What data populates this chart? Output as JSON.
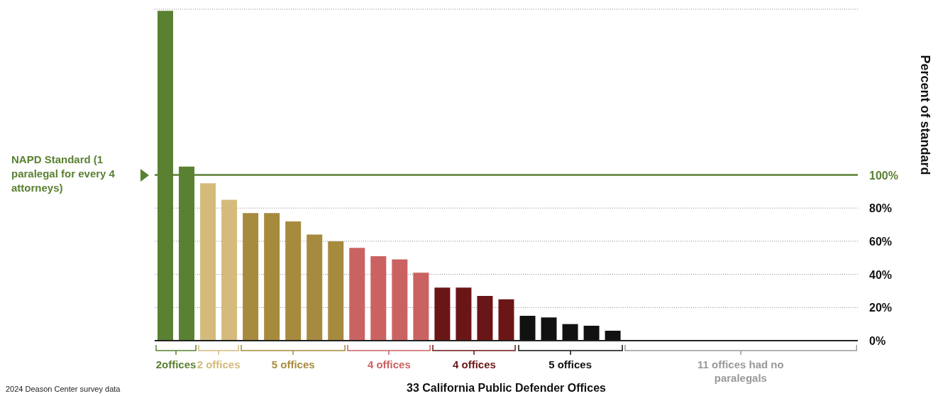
{
  "chart_data": {
    "type": "bar",
    "xlabel": "33 California Public Defender Offices",
    "ylabel": "Percent of standard",
    "categories": [
      null,
      null,
      null,
      null,
      null,
      null,
      null,
      null,
      null,
      null,
      null,
      null,
      null,
      null,
      null,
      null,
      null,
      null,
      null,
      null,
      null,
      null,
      null,
      null,
      null,
      null,
      null,
      null,
      null,
      null,
      null,
      null,
      null
    ],
    "values": [
      199,
      105,
      95,
      85,
      77,
      77,
      72,
      64,
      60,
      56,
      51,
      49,
      41,
      32,
      32,
      27,
      25,
      15,
      14,
      10,
      9,
      6,
      0,
      0,
      0,
      0,
      0,
      0,
      0,
      0,
      0,
      0,
      0
    ],
    "colors": [
      "#5a8132",
      "#5a8132",
      "#d4bb7c",
      "#d4bb7c",
      "#a68a3e",
      "#a68a3e",
      "#a68a3e",
      "#a68a3e",
      "#a68a3e",
      "#cb6262",
      "#cb6262",
      "#cb6262",
      "#cb6262",
      "#6b1616",
      "#6b1616",
      "#6b1616",
      "#6b1616",
      "#111111",
      "#111111",
      "#111111",
      "#111111",
      "#111111",
      "#999999",
      "#999999",
      "#999999",
      "#999999",
      "#999999",
      "#999999",
      "#999999",
      "#999999",
      "#999999",
      "#999999",
      "#999999"
    ],
    "ylim": [
      0,
      200
    ],
    "yticks": [
      {
        "value": 0,
        "label": "0%"
      },
      {
        "value": 20,
        "label": "20%"
      },
      {
        "value": 40,
        "label": "40%"
      },
      {
        "value": 60,
        "label": "60%"
      },
      {
        "value": 80,
        "label": "80%"
      },
      {
        "value": 100,
        "label": "100%"
      }
    ],
    "grid": "y",
    "tick_labels": "y",
    "ref_lines": [
      {
        "axis": "y",
        "value": 100,
        "label": "NAPD Standard (1 paralegal for every 4 attorneys)",
        "color": "#5a8132"
      }
    ],
    "annotations": [
      "2offices",
      "2 offices",
      "5 offices",
      "4 offices",
      "4 offices",
      "5 offices",
      "11 offices had no paralegals",
      "2024 Deason Center survey data"
    ]
  }
}
